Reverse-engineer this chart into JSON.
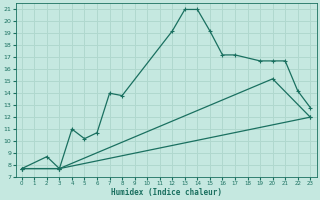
{
  "xlabel": "Humidex (Indice chaleur)",
  "bg_color": "#c5e8e0",
  "grid_color": "#b0d8ce",
  "line_color": "#1a7060",
  "xlim": [
    -0.5,
    23.5
  ],
  "ylim": [
    7,
    21.5
  ],
  "xticks": [
    0,
    1,
    2,
    3,
    4,
    5,
    6,
    7,
    8,
    9,
    10,
    11,
    12,
    13,
    14,
    15,
    16,
    17,
    18,
    19,
    20,
    21,
    22,
    23
  ],
  "yticks": [
    7,
    8,
    9,
    10,
    11,
    12,
    13,
    14,
    15,
    16,
    17,
    18,
    19,
    20,
    21
  ],
  "line1_x": [
    0,
    3,
    23
  ],
  "line1_y": [
    7.7,
    7.7,
    12.0
  ],
  "line2_x": [
    0,
    3,
    20,
    23
  ],
  "line2_y": [
    7.7,
    7.7,
    15.2,
    12.0
  ],
  "line3_x": [
    0,
    2,
    3,
    4,
    5,
    6,
    7,
    8,
    12,
    13,
    14,
    15,
    16,
    17,
    19,
    20,
    21,
    22,
    23
  ],
  "line3_y": [
    7.7,
    8.7,
    7.7,
    11.0,
    10.2,
    10.7,
    14.0,
    13.8,
    19.2,
    21.0,
    21.0,
    19.2,
    17.2,
    17.2,
    16.7,
    16.7,
    16.7,
    14.2,
    12.8
  ]
}
